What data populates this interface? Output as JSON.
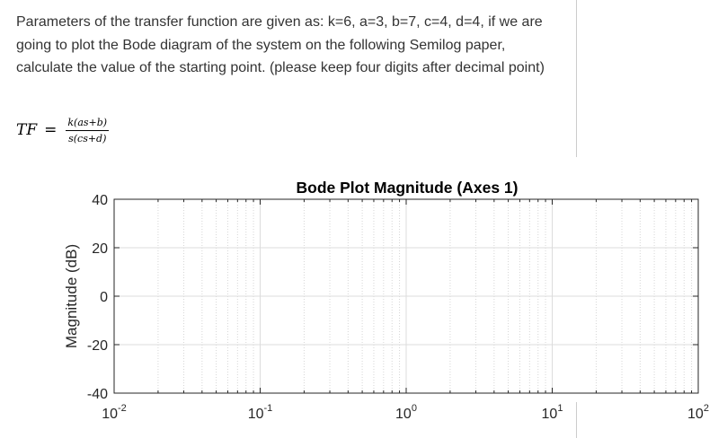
{
  "question": {
    "text": "Parameters of the transfer function are given as: k=6, a=3, b=7, c=4, d=4, if we are going to plot the Bode diagram of the system on the following Semilog paper, calculate the value of the starting point. (please keep four digits after decimal point)"
  },
  "formula": {
    "lhs": "TF",
    "equals": "=",
    "numerator": "k(as+b)",
    "denominator": "s(cs+d)"
  },
  "chart_data": {
    "type": "line",
    "title": "Bode Plot Magnitude (Axes 1)",
    "xlabel": "",
    "ylabel": "Magnitude (dB)",
    "xscale": "log",
    "xlim": [
      0.01,
      100
    ],
    "ylim": [
      -40,
      40
    ],
    "x_ticks": [
      {
        "base": "10",
        "exp": "-2",
        "value": 0.01
      },
      {
        "base": "10",
        "exp": "-1",
        "value": 0.1
      },
      {
        "base": "10",
        "exp": "0",
        "value": 1
      },
      {
        "base": "10",
        "exp": "1",
        "value": 10
      },
      {
        "base": "10",
        "exp": "2",
        "value": 100
      }
    ],
    "y_ticks": [
      {
        "label": "40",
        "value": 40
      },
      {
        "label": "20",
        "value": 20
      },
      {
        "label": "0",
        "value": 0
      },
      {
        "label": "-20",
        "value": -20
      },
      {
        "label": "-40",
        "value": -40
      }
    ],
    "grid": true,
    "minor_grid": true,
    "series": []
  }
}
